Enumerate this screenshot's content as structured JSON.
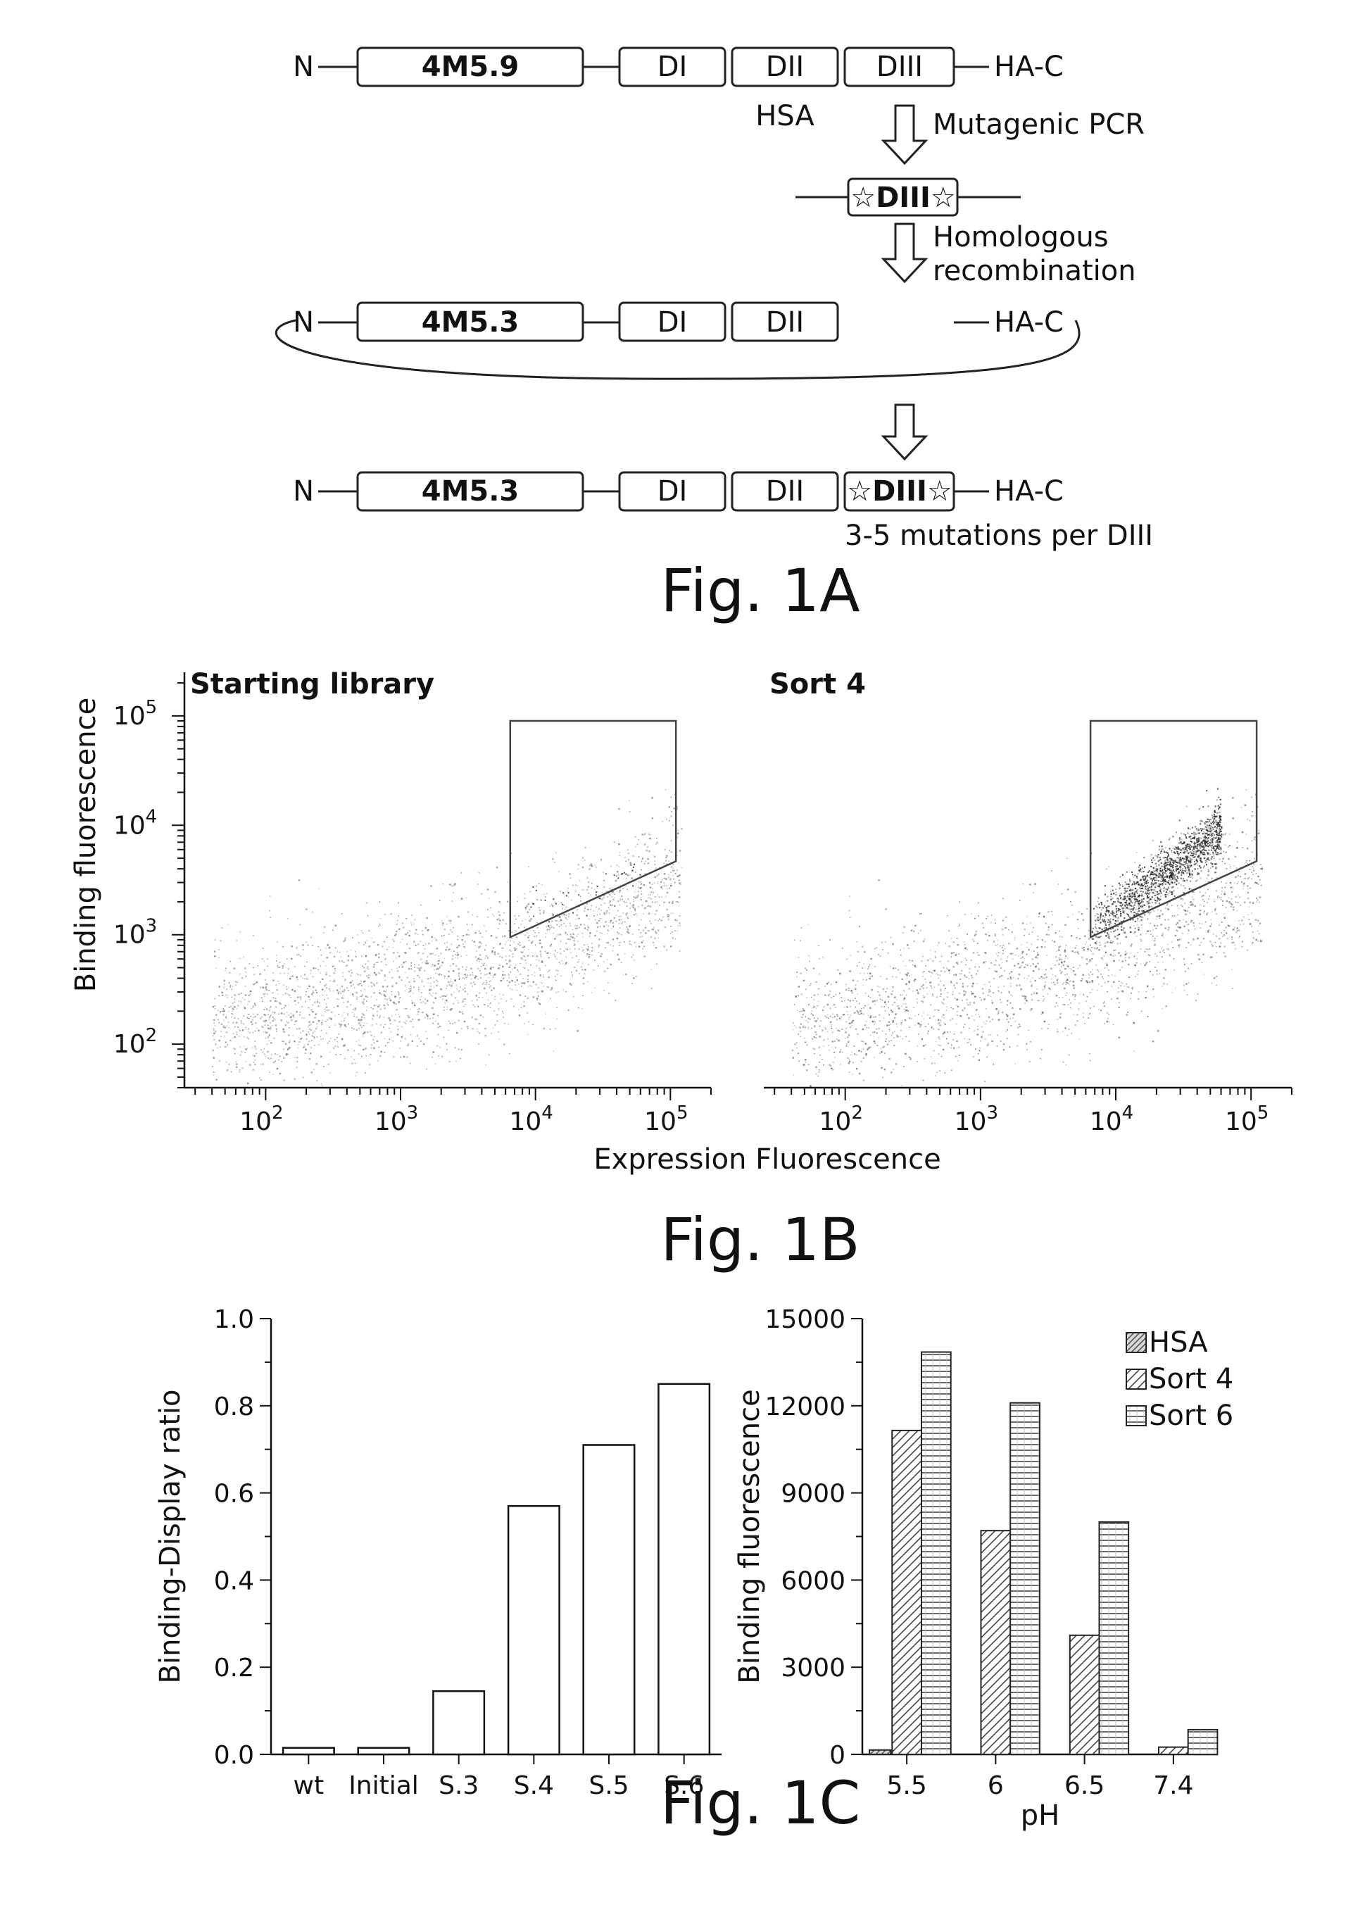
{
  "fig1a": {
    "caption": "Fig. 1A",
    "row1": {
      "n": "N",
      "scfv": "4M5.9",
      "d1": "DI",
      "d2": "DII",
      "d3": "DIII",
      "c": "HA-C",
      "below": "HSA"
    },
    "step1": "Mutagenic PCR",
    "mutant": "☆DIII☆",
    "step2_line1": "Homologous",
    "step2_line2": "recombination",
    "row3": {
      "n": "N",
      "scfv": "4M5.3",
      "d1": "DI",
      "d2": "DII",
      "c": "HA-C"
    },
    "row4": {
      "n": "N",
      "scfv": "4M5.3",
      "d1": "DI",
      "d2": "DII",
      "d3": "☆DIII☆",
      "c": "HA-C"
    },
    "note": "3-5 mutations per DIII"
  },
  "fig1b": {
    "caption": "Fig. 1B",
    "ylabel": "Binding fluorescence",
    "xlabel": "Expression Fluorescence",
    "panels": [
      {
        "title": "Starting library"
      },
      {
        "title": "Sort 4"
      }
    ],
    "ticks": [
      {
        "base": "10",
        "exp": "2"
      },
      {
        "base": "10",
        "exp": "3"
      },
      {
        "base": "10",
        "exp": "4"
      },
      {
        "base": "10",
        "exp": "5"
      }
    ]
  },
  "fig1c": {
    "caption": "Fig. 1C"
  },
  "chart_data": [
    {
      "type": "scatter",
      "title": "Starting library",
      "xlabel": "Expression Fluorescence",
      "ylabel": "Binding fluorescence",
      "xscale": "log",
      "yscale": "log",
      "xlim": [
        25,
        200000
      ],
      "ylim": [
        40,
        250000
      ],
      "gate": {
        "x": [
          6500,
          6500,
          110000,
          110000
        ],
        "y": [
          90000,
          950,
          4700,
          90000
        ]
      },
      "population": "dense diagonal cloud, binding approx. 100-1000 across expression 30-10^5",
      "gated_events": "few"
    },
    {
      "type": "scatter",
      "title": "Sort 4",
      "xlabel": "Expression Fluorescence",
      "ylabel": "Binding fluorescence",
      "xscale": "log",
      "yscale": "log",
      "xlim": [
        25,
        200000
      ],
      "ylim": [
        40,
        250000
      ],
      "gate": {
        "x": [
          6500,
          6500,
          110000,
          110000
        ],
        "y": [
          90000,
          950,
          4700,
          90000
        ]
      },
      "population": "cloud with dense enriched streak inside gate, binding approx. 10^3-10^4 at expression 10^4-10^5",
      "gated_events": "many"
    },
    {
      "type": "bar",
      "categories": [
        "wt",
        "Initial",
        "S.3",
        "S.4",
        "S.5",
        "S.6"
      ],
      "values": [
        0.015,
        0.015,
        0.145,
        0.57,
        0.71,
        0.85
      ],
      "ylabel": "Binding-Display ratio",
      "ylim": [
        0,
        1.0
      ],
      "yticks": [
        "0.0",
        "0.2",
        "0.4",
        "0.6",
        "0.8",
        "1.0"
      ]
    },
    {
      "type": "bar",
      "categories": [
        "5.5",
        "6",
        "6.5",
        "7.4"
      ],
      "series": [
        {
          "name": "HSA",
          "values": [
            150,
            0,
            0,
            0
          ]
        },
        {
          "name": "Sort 4",
          "values": [
            11150,
            7700,
            4100,
            250
          ]
        },
        {
          "name": "Sort 6",
          "values": [
            13850,
            12100,
            8000,
            850
          ]
        }
      ],
      "xlabel": "pH",
      "ylabel": "Binding fluorescence",
      "ylim": [
        0,
        15000
      ],
      "yticks": [
        "0",
        "3000",
        "6000",
        "9000",
        "12000",
        "15000"
      ],
      "legend": "top-right"
    }
  ]
}
